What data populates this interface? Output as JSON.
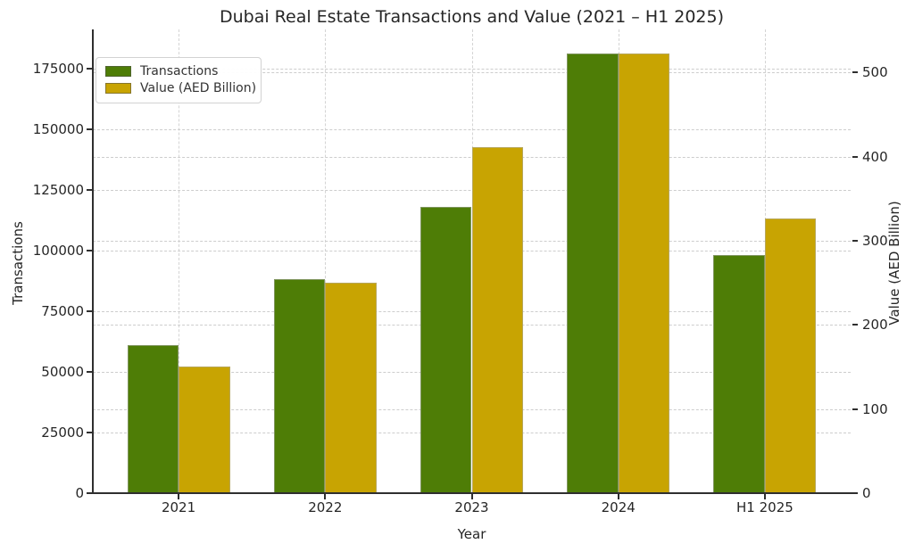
{
  "title_bar": {
    "title": "Dubai Real Estate Transactions and Value (2021 – H1 2025)"
  },
  "colors": {
    "transactions_green": "#4e7d06",
    "value_gold": "#c8a402",
    "grid": "#cdcdcd",
    "spine": "#2f2f2f",
    "text": "#262626",
    "background": "#ffffff"
  },
  "chart_data": {
    "type": "bar",
    "title": "Dubai Real Estate Transactions and Value (2021 – H1 2025)",
    "xlabel": "Year",
    "ylabel_left": "Transactions",
    "ylabel_right": "Value (AED Billion)",
    "categories": [
      "2021",
      "2022",
      "2023",
      "2024",
      "H1 2025"
    ],
    "series": [
      {
        "name": "Transactions",
        "axis": "left",
        "color": "#4e7d06",
        "values": [
          61000,
          88000,
          118000,
          181000,
          98000
        ]
      },
      {
        "name": "Value (AED Billion)",
        "axis": "right",
        "color": "#c8a402",
        "values": [
          150,
          250,
          411,
          522,
          326
        ]
      }
    ],
    "left_axis": {
      "ticks": [
        0,
        25000,
        50000,
        75000,
        100000,
        125000,
        150000,
        175000
      ],
      "max": 191000
    },
    "right_axis": {
      "ticks": [
        0,
        100,
        200,
        300,
        400,
        500
      ],
      "max": 551
    },
    "legend_position": "upper left",
    "grid": "dashed, horizontal gridlines for both axes, vertical at category centers",
    "bar_width_fraction": 0.35
  }
}
